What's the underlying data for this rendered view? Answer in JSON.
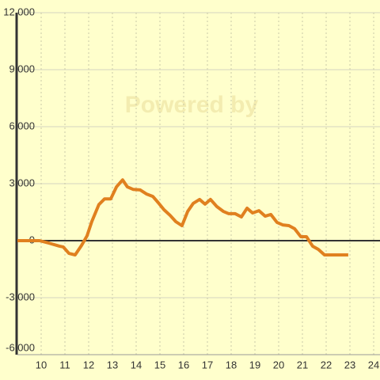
{
  "chart_data": {
    "type": "line",
    "watermark": "Powered by",
    "x": [
      9.0,
      9.93,
      10.33,
      10.77,
      10.93,
      11.17,
      11.43,
      11.7,
      11.93,
      12.13,
      12.43,
      12.67,
      12.93,
      13.17,
      13.43,
      13.63,
      13.87,
      14.17,
      14.43,
      14.7,
      14.93,
      15.17,
      15.43,
      15.67,
      15.93,
      16.17,
      16.4,
      16.67,
      16.9,
      17.13,
      17.4,
      17.67,
      17.9,
      18.17,
      18.43,
      18.67,
      18.9,
      19.17,
      19.43,
      19.67,
      19.93,
      20.17,
      20.43,
      20.67,
      20.93,
      21.17,
      21.43,
      21.67,
      21.93,
      22.93
    ],
    "series": [
      {
        "color": "#e0801f",
        "values": [
          0,
          0,
          -130,
          -290,
          -330,
          -670,
          -750,
          -250,
          250,
          1000,
          1900,
          2200,
          2200,
          2830,
          3200,
          2830,
          2700,
          2670,
          2460,
          2330,
          2000,
          1630,
          1330,
          1000,
          790,
          1540,
          1960,
          2170,
          1920,
          2170,
          1790,
          1540,
          1420,
          1420,
          1250,
          1710,
          1460,
          1580,
          1290,
          1380,
          960,
          830,
          790,
          630,
          210,
          210,
          -290,
          -460,
          -750,
          -750
        ]
      }
    ],
    "xlim": [
      9,
      24.25
    ],
    "xticks": [
      10,
      11,
      12,
      13,
      14,
      15,
      16,
      17,
      18,
      19,
      20,
      21,
      22,
      23,
      24
    ],
    "ylim": [
      -6000,
      12000
    ],
    "yticks": [
      {
        "value": -6000,
        "label": "-6,000"
      },
      {
        "value": -3000,
        "label": "-3,000"
      },
      0,
      {
        "value": 3000,
        "label": "3,000"
      },
      {
        "value": 6000,
        "label": "6,000"
      },
      {
        "value": 9000,
        "label": "9,000"
      },
      {
        "value": 12000,
        "label": "12,000"
      }
    ],
    "grid": true
  }
}
